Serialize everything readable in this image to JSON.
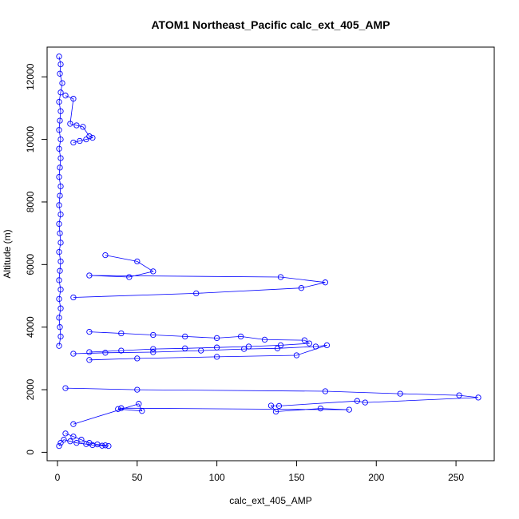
{
  "chart_data": {
    "type": "scatter",
    "title": "ATOM1 Northeast_Pacific calc_ext_405_AMP",
    "xlabel": "calc_ext_405_AMP",
    "ylabel": "Altitude (m)",
    "xlim": [
      -6.5,
      274
    ],
    "ylim": [
      -270,
      12950
    ],
    "xticks": [
      0,
      50,
      100,
      150,
      200,
      250
    ],
    "yticks": [
      0,
      2000,
      4000,
      6000,
      8000,
      10000,
      12000
    ],
    "grid": false,
    "color": "#0000ff",
    "marker": "open-circle",
    "connected": true,
    "series": [
      {
        "x": [
          1,
          2,
          1.5,
          3,
          2,
          1,
          2,
          1.5,
          1,
          2,
          1,
          2,
          1.5,
          1,
          2,
          1.5,
          1,
          2,
          1,
          1.5,
          2,
          1,
          2,
          1.5,
          1,
          2,
          1,
          2,
          1,
          1.5,
          2,
          1
        ],
        "y": [
          12650,
          12400,
          12100,
          11800,
          11500,
          11200,
          10900,
          10600,
          10300,
          10000,
          9700,
          9400,
          9100,
          8800,
          8500,
          8200,
          7900,
          7600,
          7300,
          7000,
          6700,
          6400,
          6100,
          5800,
          5500,
          5200,
          4900,
          4600,
          4300,
          4000,
          3700,
          3400
        ]
      },
      {
        "x": [
          5,
          10,
          8,
          12,
          16,
          20,
          22,
          18,
          14,
          10
        ],
        "y": [
          11400,
          11300,
          10500,
          10450,
          10400,
          10100,
          10050,
          10000,
          9950,
          9900
        ]
      },
      {
        "x": [
          30,
          50,
          60,
          45,
          20,
          140,
          168,
          153,
          87,
          10
        ],
        "y": [
          6300,
          6100,
          5780,
          5600,
          5650,
          5600,
          5430,
          5250,
          5080,
          4950
        ]
      },
      {
        "x": [
          20,
          40,
          60,
          80,
          100,
          115,
          130,
          155,
          158,
          140,
          120,
          100,
          80,
          60,
          40,
          20
        ],
        "y": [
          3850,
          3800,
          3750,
          3700,
          3650,
          3700,
          3600,
          3580,
          3480,
          3420,
          3380,
          3350,
          3320,
          3300,
          3250,
          3200
        ]
      },
      {
        "x": [
          10,
          30,
          60,
          90,
          117,
          138,
          162,
          169,
          150,
          100,
          50,
          20
        ],
        "y": [
          3150,
          3180,
          3200,
          3250,
          3300,
          3320,
          3380,
          3420,
          3100,
          3050,
          3000,
          2950
        ]
      },
      {
        "x": [
          5,
          50,
          168,
          215,
          252,
          264,
          193,
          188,
          139,
          134,
          137,
          165,
          183,
          40,
          38,
          53,
          51,
          10
        ],
        "y": [
          2050,
          2000,
          1950,
          1870,
          1820,
          1750,
          1590,
          1640,
          1480,
          1490,
          1300,
          1400,
          1360,
          1410,
          1380,
          1320,
          1550,
          900
        ]
      },
      {
        "x": [
          5,
          10,
          15,
          20,
          25,
          30,
          32,
          28,
          22,
          18,
          12,
          8,
          4,
          2,
          1
        ],
        "y": [
          600,
          500,
          400,
          300,
          250,
          220,
          200,
          210,
          230,
          260,
          300,
          350,
          400,
          300,
          200
        ]
      }
    ]
  }
}
